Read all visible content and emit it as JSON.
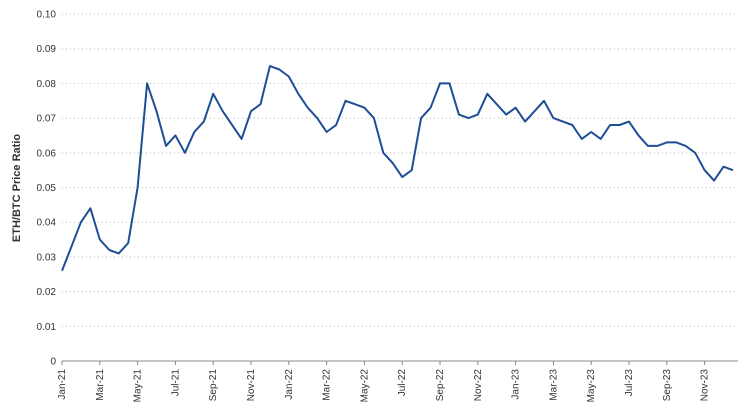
{
  "chart_data": {
    "type": "line",
    "y_label": "ETH/BTC  Price Ratio",
    "categories": [
      "Jan-21",
      null,
      null,
      null,
      "Mar-21",
      null,
      null,
      null,
      "May-21",
      null,
      null,
      null,
      "Jul-21",
      null,
      null,
      null,
      "Sep-21",
      null,
      null,
      null,
      "Nov-21",
      null,
      null,
      null,
      "Jan-22",
      null,
      null,
      null,
      "Mar-22",
      null,
      null,
      null,
      "May-22",
      null,
      null,
      null,
      "Jul-22",
      null,
      null,
      null,
      "Sep-22",
      null,
      null,
      null,
      "Nov-22",
      null,
      null,
      null,
      "Jan-23",
      null,
      null,
      null,
      "Mar-23",
      null,
      null,
      null,
      "May-23",
      null,
      null,
      null,
      "Jul-23",
      null,
      null,
      null,
      "Sep-23",
      null,
      null,
      null,
      "Nov-23",
      null,
      null,
      null
    ],
    "series": [
      {
        "name": "ETH/BTC",
        "color": "#1f4e96",
        "values": [
          0.026,
          0.033,
          0.04,
          0.044,
          0.035,
          0.032,
          0.031,
          0.034,
          0.05,
          0.08,
          0.072,
          0.062,
          0.065,
          0.06,
          0.066,
          0.069,
          0.077,
          0.072,
          0.068,
          0.064,
          0.072,
          0.074,
          0.085,
          0.084,
          0.082,
          0.077,
          0.073,
          0.07,
          0.066,
          0.068,
          0.075,
          0.074,
          0.073,
          0.07,
          0.06,
          0.057,
          0.053,
          0.055,
          0.07,
          0.073,
          0.08,
          0.08,
          0.071,
          0.07,
          0.071,
          0.077,
          0.074,
          0.071,
          0.073,
          0.069,
          0.072,
          0.075,
          0.07,
          0.069,
          0.068,
          0.064,
          0.066,
          0.064,
          0.068,
          0.068,
          0.069,
          0.065,
          0.062,
          0.062,
          0.063,
          0.063,
          0.062,
          0.06,
          0.055,
          0.052,
          0.056,
          0.055
        ]
      }
    ],
    "ylim": [
      0,
      0.1
    ],
    "yticks": [
      0,
      0.01,
      0.02,
      0.03,
      0.04,
      0.05,
      0.06,
      0.07,
      0.08,
      0.09,
      {
        "value": 0.1,
        "label": "0.10"
      }
    ],
    "grid": true
  }
}
